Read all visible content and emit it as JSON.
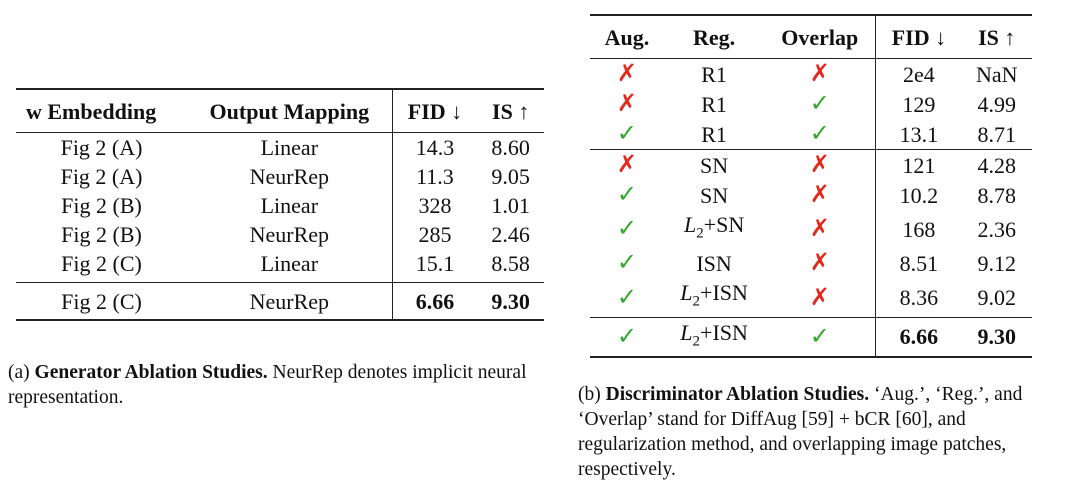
{
  "table_a": {
    "headers": [
      "w Embedding",
      "Output Mapping",
      "FID ↓",
      "IS ↑"
    ],
    "rows": [
      [
        "Fig 2 (A)",
        "Linear",
        "14.3",
        "8.60"
      ],
      [
        "Fig 2 (A)",
        "NeurRep",
        "11.3",
        "9.05"
      ],
      [
        "Fig 2 (B)",
        "Linear",
        "328",
        "1.01"
      ],
      [
        "Fig 2 (B)",
        "NeurRep",
        "285",
        "2.46"
      ],
      [
        "Fig 2 (C)",
        "Linear",
        "15.1",
        "8.58"
      ]
    ],
    "final_row": [
      "Fig 2 (C)",
      "NeurRep",
      "6.66",
      "9.30"
    ]
  },
  "caption_a": {
    "label": "(a)",
    "bold": "Generator Ablation Studies.",
    "text": "NeurRep denotes implicit neural representation."
  },
  "table_b": {
    "headers": [
      "Aug.",
      "Reg.",
      "Overlap",
      "FID ↓",
      "IS ↑"
    ],
    "symbols": {
      "check": "✓",
      "cross": "✗"
    },
    "group1": [
      {
        "aug": "cross",
        "reg": "R1",
        "overlap": "cross",
        "fid": "2e4",
        "is": "NaN"
      },
      {
        "aug": "cross",
        "reg": "R1",
        "overlap": "check",
        "fid": "129",
        "is": "4.99"
      },
      {
        "aug": "check",
        "reg": "R1",
        "overlap": "check",
        "fid": "13.1",
        "is": "8.71"
      }
    ],
    "group2": [
      {
        "aug": "cross",
        "reg": "SN",
        "overlap": "cross",
        "fid": "121",
        "is": "4.28"
      },
      {
        "aug": "check",
        "reg": "SN",
        "overlap": "cross",
        "fid": "10.2",
        "is": "8.78"
      },
      {
        "aug": "check",
        "reg": "L2+SN",
        "overlap": "cross",
        "fid": "168",
        "is": "2.36"
      },
      {
        "aug": "check",
        "reg": "ISN",
        "overlap": "cross",
        "fid": "8.51",
        "is": "9.12"
      },
      {
        "aug": "check",
        "reg": "L2+ISN",
        "overlap": "cross",
        "fid": "8.36",
        "is": "9.02"
      }
    ],
    "final_row": {
      "aug": "check",
      "reg": "L2+ISN",
      "overlap": "check",
      "fid": "6.66",
      "is": "9.30"
    }
  },
  "caption_b": {
    "label": "(b)",
    "bold": "Discriminator Ablation Studies.",
    "text": "‘Aug.’, ‘Reg.’, and ‘Overlap’ stand for DiffAug [59] + bCR [60], and regularization method, and overlapping image patches, respectively."
  },
  "colors": {
    "check": "#2faa2a",
    "cross": "#e3281e"
  }
}
